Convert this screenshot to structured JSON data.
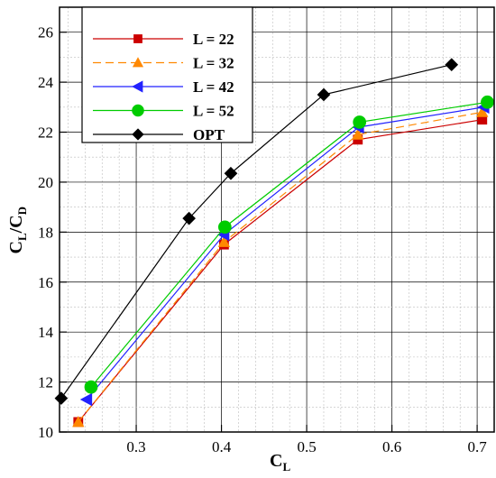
{
  "chart_data": {
    "type": "line",
    "xlabel": {
      "main": "C",
      "sub": "L"
    },
    "ylabel": {
      "main1": "C",
      "sub1": "L",
      "slash": "/",
      "main2": "C",
      "sub2": "D"
    },
    "xlim": [
      0.21,
      0.72
    ],
    "ylim": [
      10,
      27
    ],
    "xticks": [
      0.3,
      0.4,
      0.5,
      0.6,
      0.7
    ],
    "xtick_labels": [
      "0.3",
      "0.4",
      "0.5",
      "0.6",
      "0.7"
    ],
    "yticks": [
      10,
      12,
      14,
      16,
      18,
      20,
      22,
      24,
      26
    ],
    "ytick_labels": [
      "10",
      "12",
      "14",
      "16",
      "18",
      "20",
      "22",
      "24",
      "26"
    ],
    "grid": true,
    "legend_position": "top-left",
    "series": [
      {
        "name": "L = 22",
        "color": "#cc0000",
        "dash": "",
        "marker": "square",
        "x": [
          0.232,
          0.403,
          0.56,
          0.706
        ],
        "y": [
          10.4,
          17.5,
          21.7,
          22.5
        ]
      },
      {
        "name": "L = 32",
        "color": "#ff8800",
        "dash": "9,5",
        "marker": "triangle-up",
        "x": [
          0.232,
          0.403,
          0.56,
          0.706
        ],
        "y": [
          10.4,
          17.6,
          21.9,
          22.8
        ]
      },
      {
        "name": "L = 42",
        "color": "#2222ff",
        "dash": "",
        "marker": "triangle-left",
        "x": [
          0.242,
          0.403,
          0.561,
          0.708
        ],
        "y": [
          11.3,
          17.9,
          22.2,
          23.0
        ]
      },
      {
        "name": "L = 52",
        "color": "#00cc00",
        "dash": "",
        "marker": "circle",
        "x": [
          0.247,
          0.404,
          0.562,
          0.712
        ],
        "y": [
          11.8,
          18.2,
          22.4,
          23.2
        ]
      },
      {
        "name": "OPT",
        "color": "#000000",
        "dash": "",
        "marker": "diamond",
        "x": [
          0.212,
          0.362,
          0.411,
          0.52,
          0.67
        ],
        "y": [
          11.35,
          18.55,
          20.35,
          23.5,
          24.7
        ]
      }
    ]
  }
}
